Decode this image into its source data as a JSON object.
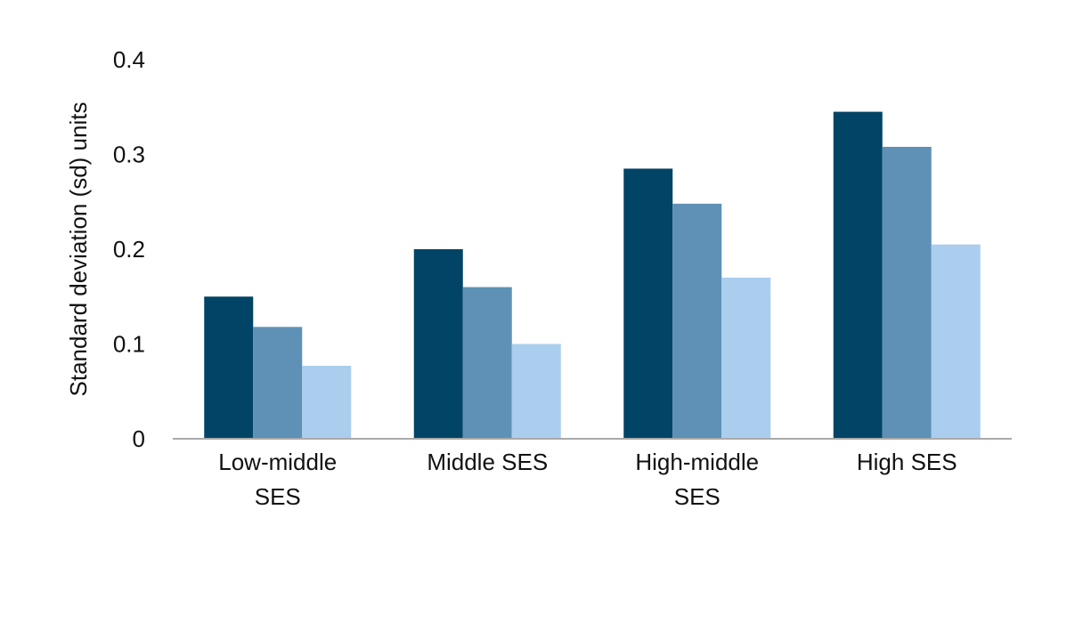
{
  "chart_data": {
    "type": "bar",
    "categories": [
      [
        "Low-middle",
        "SES"
      ],
      [
        "Middle SES"
      ],
      [
        "High-middle",
        "SES"
      ],
      [
        "High SES"
      ]
    ],
    "series": [
      {
        "values": [
          0.15,
          0.2,
          0.285,
          0.345
        ],
        "color": "#024466"
      },
      {
        "values": [
          0.118,
          0.16,
          0.248,
          0.308
        ],
        "color": "#5e91b5"
      },
      {
        "values": [
          0.077,
          0.1,
          0.17,
          0.205
        ],
        "color": "#abcdee"
      }
    ],
    "ylabel": "Standard deviation (sd) units",
    "ylim": [
      0,
      0.4
    ],
    "yticks": [
      "0",
      "0.1",
      "0.2",
      "0.3",
      "0.4"
    ],
    "grid": false,
    "baseline_color": "#aaaaaa"
  }
}
